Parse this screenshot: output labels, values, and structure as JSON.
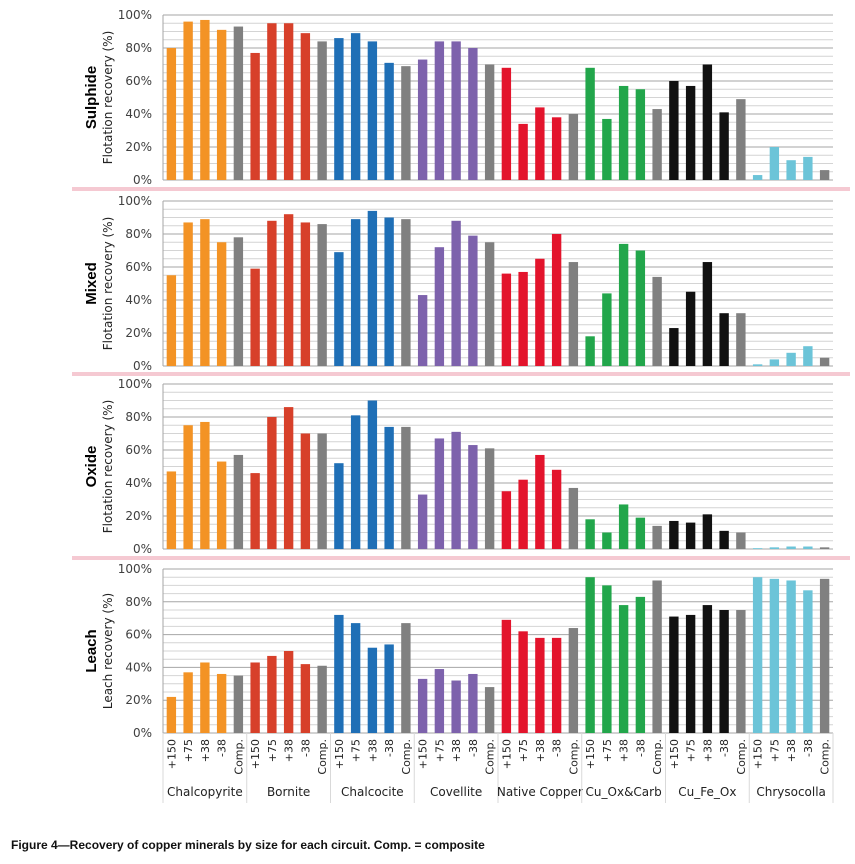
{
  "caption": "Figure 4—Recovery of copper minerals by size for each circuit. Comp. = composite",
  "chart_data": {
    "type": "bar",
    "title": "Recovery of copper minerals by size for each circuit",
    "groups": [
      "Chalcopyrite",
      "Bornite",
      "Chalcocite",
      "Covellite",
      "Native Copper",
      "Cu_Ox&Carb",
      "Cu_Fe_Ox",
      "Chrysocolla"
    ],
    "sizes": [
      "+150",
      "+75",
      "+38",
      "-38",
      "Comp."
    ],
    "group_colors": {
      "Chalcopyrite": "#f39325",
      "Bornite": "#d7402a",
      "Chalcocite": "#1f6fb6",
      "Covellite": "#7d62ac",
      "Native Copper": "#e3142c",
      "Cu_Ox&Carb": "#22a64b",
      "Cu_Fe_Ox": "#111111",
      "Chrysocolla": "#6cc4d8",
      "Comp.": "#808080"
    },
    "yticks": [
      "0%",
      "20%",
      "40%",
      "60%",
      "80%",
      "100%"
    ],
    "ylim": [
      0,
      100
    ],
    "grid": true,
    "panels": [
      {
        "name": "Sulphide",
        "ylabel": "Flotation recovery (%)",
        "values": [
          [
            80,
            96,
            97,
            91,
            93
          ],
          [
            77,
            95,
            95,
            89,
            84
          ],
          [
            86,
            89,
            84,
            71,
            69
          ],
          [
            73,
            84,
            84,
            80,
            70
          ],
          [
            68,
            34,
            44,
            38,
            40
          ],
          [
            68,
            37,
            57,
            55,
            43
          ],
          [
            60,
            57,
            70,
            41,
            49
          ],
          [
            3,
            20,
            12,
            14,
            6
          ]
        ]
      },
      {
        "name": "Mixed",
        "ylabel": "Flotation recovery (%)",
        "values": [
          [
            55,
            87,
            89,
            75,
            78
          ],
          [
            59,
            88,
            92,
            87,
            86
          ],
          [
            69,
            89,
            94,
            90,
            89
          ],
          [
            43,
            72,
            88,
            79,
            75
          ],
          [
            56,
            57,
            65,
            80,
            63
          ],
          [
            18,
            44,
            74,
            70,
            54
          ],
          [
            23,
            45,
            63,
            32,
            32
          ],
          [
            1,
            4,
            8,
            12,
            5
          ]
        ]
      },
      {
        "name": "Oxide",
        "ylabel": "Flotation recovery (%)",
        "values": [
          [
            47,
            75,
            77,
            53,
            57
          ],
          [
            46,
            80,
            86,
            70,
            70
          ],
          [
            52,
            81,
            90,
            74,
            74
          ],
          [
            33,
            67,
            71,
            63,
            61
          ],
          [
            35,
            42,
            57,
            48,
            37
          ],
          [
            18,
            10,
            27,
            19,
            14
          ],
          [
            17,
            16,
            21,
            11,
            10
          ],
          [
            0.5,
            1,
            1.5,
            1.5,
            1
          ]
        ]
      },
      {
        "name": "Leach",
        "ylabel": "Leach recovery (%)",
        "values": [
          [
            22,
            37,
            43,
            36,
            35
          ],
          [
            43,
            47,
            50,
            42,
            41
          ],
          [
            72,
            67,
            52,
            54,
            67
          ],
          [
            33,
            39,
            32,
            36,
            28
          ],
          [
            69,
            62,
            58,
            58,
            64
          ],
          [
            95,
            90,
            78,
            83,
            93
          ],
          [
            71,
            72,
            78,
            75,
            75
          ],
          [
            95,
            94,
            93,
            87,
            94
          ]
        ]
      }
    ]
  }
}
